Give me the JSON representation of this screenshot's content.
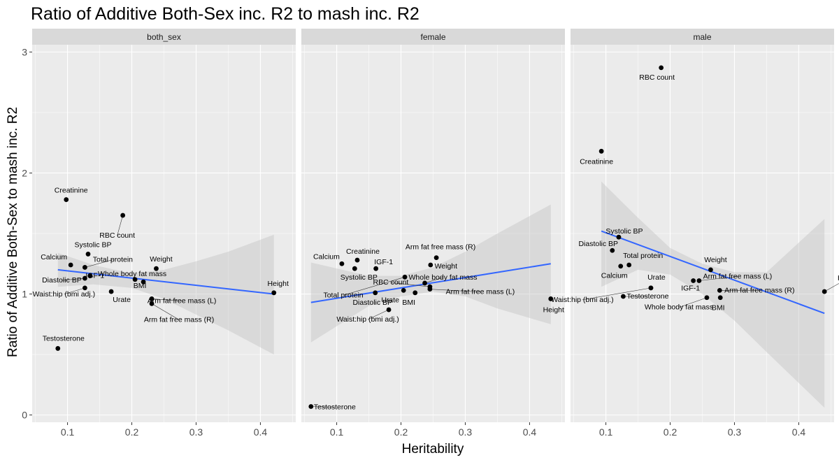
{
  "chart_data": {
    "type": "scatter",
    "title": "Ratio of Additive Both-Sex inc. R2 to mash inc. R2",
    "xlabel": "Heritability",
    "ylabel": "Ratio of Additive Both-Sex to mash inc. R2",
    "xlim": [
      0.045,
      0.455
    ],
    "ylim": [
      -0.06,
      3.06
    ],
    "x_ticks": [
      0.1,
      0.2,
      0.3,
      0.4
    ],
    "x_tick_labels": [
      "0.1",
      "0.2",
      "0.3",
      "0.4"
    ],
    "y_ticks": [
      0,
      1,
      2,
      3
    ],
    "y_tick_labels": [
      "0",
      "1",
      "2",
      "3"
    ],
    "grid": true,
    "smooth": "linear fit with confidence band",
    "colors": {
      "panel": "#ebebeb",
      "strip": "#d9d9d9",
      "grid": "#ffffff",
      "line": "#3366ff",
      "band": "#bfbfbf",
      "point": "#000000"
    },
    "panels": [
      {
        "facet": "both_sex",
        "trend": {
          "x": [
            0.085,
            0.421
          ],
          "y": [
            1.2,
            1.0
          ]
        },
        "band": {
          "x": [
            0.085,
            0.14,
            0.2,
            0.25,
            0.3,
            0.35,
            0.421
          ],
          "lower": [
            1.06,
            1.08,
            1.05,
            0.96,
            0.83,
            0.7,
            0.5
          ],
          "upper": [
            1.34,
            1.24,
            1.17,
            1.2,
            1.27,
            1.35,
            1.49
          ]
        },
        "points": [
          {
            "label": "Creatinine",
            "x": 0.098,
            "y": 1.78
          },
          {
            "label": "RBC count",
            "x": 0.186,
            "y": 1.65
          },
          {
            "label": "Systolic BP",
            "x": 0.132,
            "y": 1.33
          },
          {
            "label": "Calcium",
            "x": 0.105,
            "y": 1.24
          },
          {
            "label": "Total protein",
            "x": 0.127,
            "y": 1.22
          },
          {
            "label": "Diastolic BP",
            "x": 0.127,
            "y": 1.13
          },
          {
            "label": "IGF-1",
            "x": 0.135,
            "y": 1.15
          },
          {
            "label": "Weight",
            "x": 0.238,
            "y": 1.21
          },
          {
            "label": "Whole body fat mass",
            "x": 0.218,
            "y": 1.1
          },
          {
            "label": "BMI",
            "x": 0.205,
            "y": 1.12
          },
          {
            "label": "Waist:hip (bmi adj.)",
            "x": 0.127,
            "y": 1.05
          },
          {
            "label": "Urate",
            "x": 0.168,
            "y": 1.02
          },
          {
            "label": "Arm fat free mass (L)",
            "x": 0.231,
            "y": 0.96
          },
          {
            "label": "Arm fat free mass (R)",
            "x": 0.231,
            "y": 0.92
          },
          {
            "label": "Height",
            "x": 0.421,
            "y": 1.01
          },
          {
            "label": "Testosterone",
            "x": 0.085,
            "y": 0.55
          }
        ]
      },
      {
        "facet": "female",
        "trend": {
          "x": [
            0.06,
            0.433
          ],
          "y": [
            0.93,
            1.25
          ]
        },
        "band": {
          "x": [
            0.06,
            0.15,
            0.2,
            0.25,
            0.3,
            0.35,
            0.433
          ],
          "lower": [
            0.6,
            0.9,
            0.98,
            1.02,
            0.98,
            0.88,
            0.75
          ],
          "upper": [
            1.26,
            1.15,
            1.15,
            1.22,
            1.35,
            1.5,
            1.74
          ]
        },
        "points": [
          {
            "label": "Calcium",
            "x": 0.108,
            "y": 1.25
          },
          {
            "label": "Creatinine",
            "x": 0.132,
            "y": 1.28
          },
          {
            "label": "Systolic BP",
            "x": 0.128,
            "y": 1.21
          },
          {
            "label": "Arm fat free mass (R)",
            "x": 0.255,
            "y": 1.3
          },
          {
            "label": "Weight",
            "x": 0.246,
            "y": 1.24
          },
          {
            "label": "IGF-1",
            "x": 0.161,
            "y": 1.21
          },
          {
            "label": "Total protein",
            "x": 0.206,
            "y": 1.14
          },
          {
            "label": "Whole body fat mass",
            "x": 0.237,
            "y": 1.09
          },
          {
            "label": "RBC count",
            "x": 0.245,
            "y": 1.06
          },
          {
            "label": "Arm fat free mass (L)",
            "x": 0.245,
            "y": 1.04
          },
          {
            "label": "Diastolic BP",
            "x": 0.16,
            "y": 1.01
          },
          {
            "label": "Urate",
            "x": 0.204,
            "y": 1.03
          },
          {
            "label": "BMI",
            "x": 0.222,
            "y": 1.01
          },
          {
            "label": "Waist:hip (bmi adj.)",
            "x": 0.181,
            "y": 0.87
          },
          {
            "label": "Height",
            "x": 0.433,
            "y": 0.96
          },
          {
            "label": "Testosterone",
            "x": 0.06,
            "y": 0.07
          }
        ]
      },
      {
        "facet": "male",
        "trend": {
          "x": [
            0.093,
            0.44
          ],
          "y": [
            1.52,
            0.84
          ]
        },
        "band": {
          "x": [
            0.093,
            0.15,
            0.2,
            0.25,
            0.3,
            0.35,
            0.44
          ],
          "lower": [
            1.06,
            1.2,
            1.16,
            1.0,
            0.78,
            0.52,
            0.06
          ],
          "upper": [
            1.93,
            1.63,
            1.38,
            1.25,
            1.18,
            1.18,
            1.62
          ]
        },
        "points": [
          {
            "label": "RBC count",
            "x": 0.186,
            "y": 2.87
          },
          {
            "label": "Creatinine",
            "x": 0.093,
            "y": 2.18
          },
          {
            "label": "Systolic BP",
            "x": 0.12,
            "y": 1.47
          },
          {
            "label": "Diastolic BP",
            "x": 0.11,
            "y": 1.36
          },
          {
            "label": "Total protein",
            "x": 0.136,
            "y": 1.24
          },
          {
            "label": "Calcium",
            "x": 0.123,
            "y": 1.23
          },
          {
            "label": "Weight",
            "x": 0.263,
            "y": 1.2
          },
          {
            "label": "Urate",
            "x": 0.17,
            "y": 1.05
          },
          {
            "label": "IGF-1",
            "x": 0.236,
            "y": 1.11
          },
          {
            "label": "Arm fat free mass (L)",
            "x": 0.245,
            "y": 1.11
          },
          {
            "label": "Arm fat free mass (R)",
            "x": 0.277,
            "y": 1.03
          },
          {
            "label": "BMI",
            "x": 0.278,
            "y": 0.97
          },
          {
            "label": "Whole body fat mass",
            "x": 0.257,
            "y": 0.97
          },
          {
            "label": "Testosterone",
            "x": 0.127,
            "y": 0.98
          },
          {
            "label": "Waist:hip (bmi adj.)",
            "x": 0.17,
            "y": 1.05
          },
          {
            "label": "Height",
            "x": 0.44,
            "y": 1.02
          }
        ]
      }
    ]
  }
}
